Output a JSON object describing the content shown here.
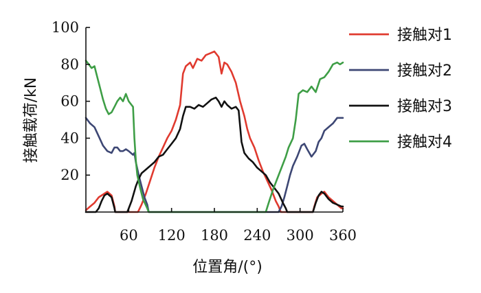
{
  "chart_data": {
    "type": "line",
    "title": "",
    "xlabel": "位置角/(°)",
    "ylabel": "接触载荷/kN",
    "xlim": [
      0,
      360
    ],
    "ylim": [
      0,
      100
    ],
    "x_ticks": [
      60,
      120,
      180,
      240,
      300,
      360
    ],
    "y_ticks": [
      20,
      40,
      60,
      80,
      100
    ],
    "grid": false,
    "legend_position": "right",
    "series": [
      {
        "name": "接触对1",
        "color": "#e03a2f",
        "points": [
          [
            0,
            1
          ],
          [
            6,
            3
          ],
          [
            12,
            5
          ],
          [
            18,
            8
          ],
          [
            26,
            10
          ],
          [
            30,
            11
          ],
          [
            36,
            9
          ],
          [
            40,
            3
          ],
          [
            41,
            0
          ],
          [
            73,
            0
          ],
          [
            78,
            4
          ],
          [
            84,
            10
          ],
          [
            90,
            17
          ],
          [
            96,
            24
          ],
          [
            102,
            30
          ],
          [
            108,
            35
          ],
          [
            114,
            40
          ],
          [
            120,
            44
          ],
          [
            126,
            50
          ],
          [
            132,
            58
          ],
          [
            136,
            75
          ],
          [
            140,
            79
          ],
          [
            146,
            81
          ],
          [
            150,
            78
          ],
          [
            156,
            83
          ],
          [
            162,
            82
          ],
          [
            168,
            85
          ],
          [
            174,
            86
          ],
          [
            180,
            87
          ],
          [
            186,
            84
          ],
          [
            190,
            75
          ],
          [
            194,
            81
          ],
          [
            198,
            80
          ],
          [
            204,
            76
          ],
          [
            210,
            70
          ],
          [
            216,
            60
          ],
          [
            222,
            52
          ],
          [
            226,
            45
          ],
          [
            230,
            40
          ],
          [
            236,
            35
          ],
          [
            242,
            28
          ],
          [
            248,
            22
          ],
          [
            254,
            17
          ],
          [
            260,
            12
          ],
          [
            266,
            6
          ],
          [
            270,
            3
          ],
          [
            273,
            0
          ],
          [
            318,
            0
          ],
          [
            320,
            3
          ],
          [
            324,
            8
          ],
          [
            330,
            10
          ],
          [
            334,
            11
          ],
          [
            340,
            8
          ],
          [
            346,
            6
          ],
          [
            352,
            4
          ],
          [
            358,
            2
          ],
          [
            360,
            2
          ]
        ]
      },
      {
        "name": "接触对2",
        "color": "#3d4774",
        "points": [
          [
            0,
            51
          ],
          [
            6,
            48
          ],
          [
            12,
            46
          ],
          [
            18,
            41
          ],
          [
            24,
            36
          ],
          [
            30,
            33
          ],
          [
            36,
            32
          ],
          [
            40,
            35
          ],
          [
            44,
            35
          ],
          [
            48,
            33
          ],
          [
            52,
            33
          ],
          [
            56,
            34
          ],
          [
            60,
            33
          ],
          [
            66,
            31
          ],
          [
            68,
            32
          ],
          [
            70,
            27
          ],
          [
            74,
            20
          ],
          [
            78,
            14
          ],
          [
            82,
            8
          ],
          [
            86,
            4
          ],
          [
            88,
            0
          ],
          [
            270,
            0
          ],
          [
            274,
            3
          ],
          [
            278,
            8
          ],
          [
            282,
            14
          ],
          [
            286,
            20
          ],
          [
            290,
            25
          ],
          [
            296,
            30
          ],
          [
            302,
            36
          ],
          [
            306,
            37
          ],
          [
            310,
            34
          ],
          [
            316,
            30
          ],
          [
            322,
            33
          ],
          [
            326,
            38
          ],
          [
            330,
            40
          ],
          [
            334,
            44
          ],
          [
            340,
            46
          ],
          [
            346,
            48
          ],
          [
            352,
            51
          ],
          [
            356,
            51
          ],
          [
            360,
            51
          ]
        ]
      },
      {
        "name": "接触对3",
        "color": "#111111",
        "points": [
          [
            0,
            0
          ],
          [
            14,
            0
          ],
          [
            18,
            2
          ],
          [
            22,
            6
          ],
          [
            26,
            9
          ],
          [
            30,
            10
          ],
          [
            36,
            8
          ],
          [
            40,
            2
          ],
          [
            41,
            0
          ],
          [
            58,
            0
          ],
          [
            64,
            6
          ],
          [
            70,
            14
          ],
          [
            74,
            18
          ],
          [
            78,
            21
          ],
          [
            84,
            23
          ],
          [
            90,
            25
          ],
          [
            96,
            27
          ],
          [
            102,
            30
          ],
          [
            108,
            31
          ],
          [
            114,
            34
          ],
          [
            120,
            37
          ],
          [
            126,
            40
          ],
          [
            132,
            45
          ],
          [
            136,
            52
          ],
          [
            140,
            57
          ],
          [
            146,
            57
          ],
          [
            152,
            56
          ],
          [
            158,
            58
          ],
          [
            164,
            57
          ],
          [
            170,
            59
          ],
          [
            176,
            61
          ],
          [
            182,
            62
          ],
          [
            186,
            60
          ],
          [
            190,
            57
          ],
          [
            194,
            60
          ],
          [
            198,
            58
          ],
          [
            204,
            56
          ],
          [
            210,
            57
          ],
          [
            214,
            55
          ],
          [
            218,
            38
          ],
          [
            222,
            32
          ],
          [
            228,
            29
          ],
          [
            234,
            27
          ],
          [
            240,
            24
          ],
          [
            246,
            22
          ],
          [
            252,
            20
          ],
          [
            258,
            16
          ],
          [
            264,
            13
          ],
          [
            270,
            10
          ],
          [
            276,
            5
          ],
          [
            280,
            2
          ],
          [
            282,
            0
          ],
          [
            318,
            0
          ],
          [
            322,
            5
          ],
          [
            326,
            9
          ],
          [
            330,
            11
          ],
          [
            334,
            10
          ],
          [
            340,
            7
          ],
          [
            346,
            5
          ],
          [
            352,
            4
          ],
          [
            358,
            3
          ],
          [
            360,
            3
          ]
        ]
      },
      {
        "name": "接触对4",
        "color": "#3e9e46",
        "points": [
          [
            0,
            82
          ],
          [
            4,
            80
          ],
          [
            8,
            78
          ],
          [
            12,
            79
          ],
          [
            16,
            73
          ],
          [
            20,
            67
          ],
          [
            24,
            61
          ],
          [
            28,
            56
          ],
          [
            32,
            53
          ],
          [
            36,
            54
          ],
          [
            40,
            57
          ],
          [
            44,
            60
          ],
          [
            48,
            62
          ],
          [
            52,
            60
          ],
          [
            56,
            64
          ],
          [
            60,
            60
          ],
          [
            64,
            58
          ],
          [
            66,
            57
          ],
          [
            68,
            40
          ],
          [
            70,
            28
          ],
          [
            72,
            20
          ],
          [
            76,
            13
          ],
          [
            80,
            7
          ],
          [
            86,
            2
          ],
          [
            88,
            0
          ],
          [
            252,
            0
          ],
          [
            256,
            5
          ],
          [
            262,
            12
          ],
          [
            268,
            18
          ],
          [
            274,
            24
          ],
          [
            280,
            30
          ],
          [
            284,
            35
          ],
          [
            290,
            40
          ],
          [
            294,
            50
          ],
          [
            298,
            64
          ],
          [
            304,
            66
          ],
          [
            310,
            65
          ],
          [
            316,
            68
          ],
          [
            322,
            65
          ],
          [
            328,
            72
          ],
          [
            334,
            73
          ],
          [
            340,
            76
          ],
          [
            346,
            80
          ],
          [
            352,
            81
          ],
          [
            356,
            80
          ],
          [
            360,
            81
          ]
        ]
      }
    ]
  }
}
